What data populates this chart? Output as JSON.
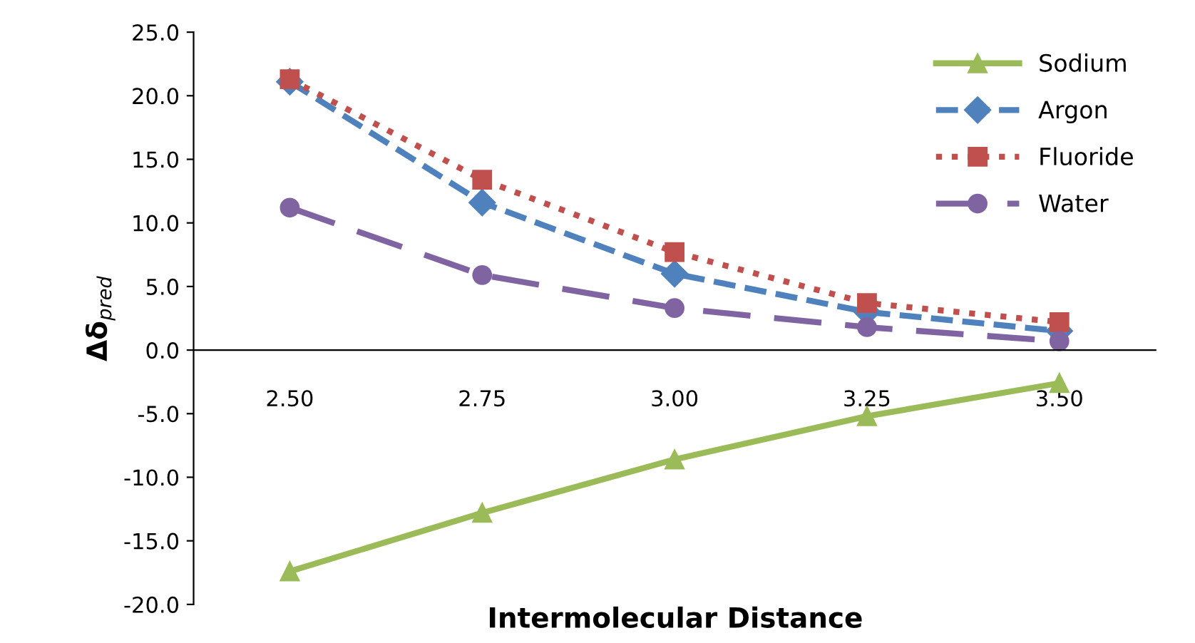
{
  "chart_data": {
    "type": "line",
    "xlabel": "Intermolecular Distance",
    "ylabel": "Δδ$_{pred}$",
    "categories": [
      "2.50",
      "2.75",
      "3.00",
      "3.25",
      "3.50"
    ],
    "series": [
      {
        "name": "Sodium",
        "color": "#9bbb59",
        "marker": "triangle",
        "line_style": "solid",
        "values": [
          -17.4,
          -12.8,
          -8.6,
          -5.2,
          -2.6
        ]
      },
      {
        "name": "Argon",
        "color": "#4f81bd",
        "marker": "diamond",
        "line_style": "dashed",
        "values": [
          21.1,
          11.6,
          6.0,
          3.0,
          1.5
        ]
      },
      {
        "name": "Fluoride",
        "color": "#c0504d",
        "marker": "square",
        "line_style": "dotted",
        "values": [
          21.3,
          13.4,
          7.7,
          3.7,
          2.2
        ]
      },
      {
        "name": "Water",
        "color": "#8064a2",
        "marker": "circle",
        "line_style": "dashed",
        "values": [
          11.2,
          5.9,
          3.3,
          1.8,
          0.7
        ]
      }
    ],
    "ylim": [
      -20,
      25
    ],
    "yticks": [
      {
        "value": -20,
        "label": "-20.0"
      },
      {
        "value": -15,
        "label": "-15.0"
      },
      {
        "value": -10,
        "label": "-10.0"
      },
      {
        "value": -5,
        "label": "-5.0"
      },
      {
        "value": 0,
        "label": "0.0"
      },
      {
        "value": 5,
        "label": "5.0"
      },
      {
        "value": 10,
        "label": "10.0"
      },
      {
        "value": 15,
        "label": "15.0"
      },
      {
        "value": 20,
        "label": "20.0"
      },
      {
        "value": 25,
        "label": "25.0"
      }
    ],
    "grid": false,
    "legend": "top right"
  }
}
